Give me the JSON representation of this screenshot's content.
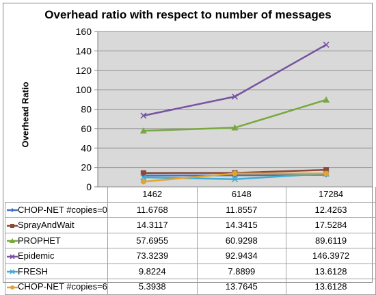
{
  "chart_data": {
    "type": "line",
    "title": "Overhead ratio with respect to number of messages",
    "xlabel": "",
    "ylabel": "Overhead Ratio",
    "ylim": [
      0,
      160
    ],
    "yticks": [
      0,
      20,
      40,
      60,
      80,
      100,
      120,
      140,
      160
    ],
    "categories": [
      "1462",
      "6148",
      "17284"
    ],
    "grid": true,
    "legend": "data-table-left",
    "series": [
      {
        "name": "CHOP-NET #copies=0",
        "values": [
          11.6768,
          11.8557,
          12.4263
        ],
        "labels": [
          "11.6768",
          "11.8557",
          "12.4263"
        ],
        "color": "#4472C4",
        "marker": "diamond"
      },
      {
        "name": "SprayAndWait",
        "values": [
          14.3117,
          14.3415,
          17.5284
        ],
        "labels": [
          "14.3117",
          "14.3415",
          "17.5284"
        ],
        "color": "#8B4A3A",
        "marker": "square"
      },
      {
        "name": "PROPHET",
        "values": [
          57.6955,
          60.9298,
          89.6119
        ],
        "labels": [
          "57.6955",
          "60.9298",
          "89.6119"
        ],
        "color": "#77A83E",
        "marker": "triangle"
      },
      {
        "name": "Epidemic",
        "values": [
          73.3239,
          92.9434,
          146.3972
        ],
        "labels": [
          "73.3239",
          "92.9434",
          "146.3972"
        ],
        "color": "#7652A0",
        "marker": "x"
      },
      {
        "name": "FRESH",
        "values": [
          9.8224,
          7.8899,
          13.6128
        ],
        "labels": [
          "9.8224",
          "7.8899",
          "13.6128"
        ],
        "color": "#3DAED1",
        "marker": "x"
      },
      {
        "name": "CHOP-NET #copies=6",
        "values": [
          5.3938,
          13.7645,
          13.6128
        ],
        "labels": [
          "5.3938",
          "13.7645",
          "13.6128"
        ],
        "color": "#E3A32E",
        "marker": "circle"
      }
    ]
  }
}
